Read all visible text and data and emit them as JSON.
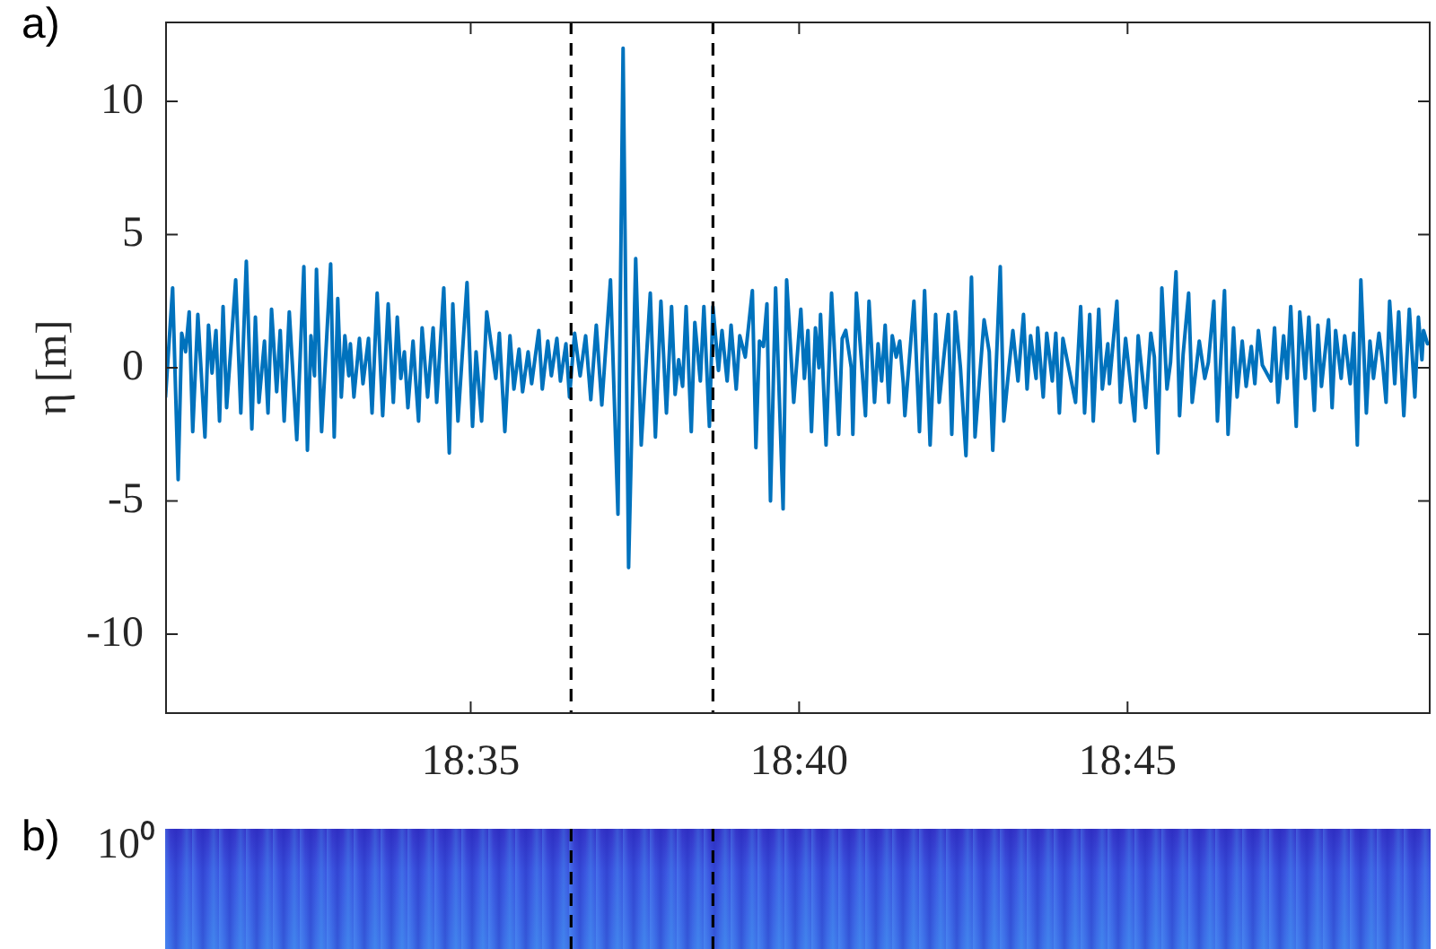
{
  "chart_data": [
    {
      "type": "line",
      "title": "a)",
      "ylabel": "η [m]",
      "color": "#0072bd",
      "xlim": [
        18.5058,
        18.8269
      ],
      "ylim": [
        -13,
        13
      ],
      "xticks": [
        {
          "value": 18.583333,
          "label": "18:35"
        },
        {
          "value": 18.666667,
          "label": "18:40"
        },
        {
          "value": 18.75,
          "label": "18:45"
        }
      ],
      "yticks": [
        -10,
        -5,
        0,
        5,
        10
      ],
      "ref_lines": [
        {
          "axis": "x",
          "value": 18.6088,
          "color": "#000000",
          "line_style": "dashed"
        },
        {
          "axis": "x",
          "value": 18.6448,
          "color": "#000000",
          "line_style": "dashed"
        }
      ],
      "x": [
        18.5059,
        18.5077,
        18.5091,
        18.51,
        18.511,
        18.5119,
        18.5128,
        18.5141,
        18.5159,
        18.5168,
        18.5177,
        18.5187,
        18.5196,
        18.5205,
        18.5214,
        18.5237,
        18.525,
        18.5264,
        18.5278,
        18.5287,
        18.5296,
        18.531,
        18.5319,
        18.5328,
        18.5341,
        18.535,
        18.536,
        18.5373,
        18.5392,
        18.541,
        18.5419,
        18.5428,
        18.5437,
        18.5442,
        18.5455,
        18.5478,
        18.5487,
        18.5496,
        18.5505,
        18.5514,
        18.5524,
        18.5528,
        18.5537,
        18.5551,
        18.556,
        18.5574,
        18.5583,
        18.5596,
        18.561,
        18.5624,
        18.5637,
        18.5647,
        18.5656,
        18.5665,
        18.5674,
        18.5687,
        18.5701,
        18.571,
        18.5724,
        18.5738,
        18.5747,
        18.5765,
        18.5779,
        18.5788,
        18.5801,
        18.5824,
        18.5838,
        18.5847,
        18.5861,
        18.5874,
        18.5897,
        18.5906,
        18.592,
        18.5933,
        18.5943,
        18.5956,
        18.5965,
        18.5979,
        18.5988,
        18.6006,
        18.6015,
        18.6029,
        18.6038,
        18.6052,
        18.6061,
        18.6075,
        18.6084,
        18.6097,
        18.6111,
        18.6125,
        18.6138,
        18.6152,
        18.6166,
        18.6188,
        18.6207,
        18.622,
        18.6234,
        18.6252,
        18.6266,
        18.6289,
        18.6302,
        18.6316,
        18.633,
        18.6343,
        18.6352,
        18.6361,
        18.6371,
        18.638,
        18.6393,
        18.6402,
        18.6416,
        18.6425,
        18.6439,
        18.6448,
        18.6462,
        18.6471,
        18.6484,
        18.6494,
        18.6507,
        18.6516,
        18.653,
        18.6548,
        18.6557,
        18.6566,
        18.6576,
        18.6585,
        18.6594,
        18.6607,
        18.6626,
        18.6635,
        18.6653,
        18.6671,
        18.668,
        18.6689,
        18.6698,
        18.6708,
        18.6717,
        18.6721,
        18.6735,
        18.6749,
        18.6767,
        18.6776,
        18.6785,
        18.6799,
        18.6803,
        18.6812,
        18.6835,
        18.6844,
        18.6858,
        18.6867,
        18.6876,
        18.6885,
        18.6894,
        18.6903,
        18.6913,
        18.6922,
        18.6931,
        18.6935,
        18.6958,
        18.6972,
        18.6985,
        18.6999,
        18.7013,
        18.7022,
        18.7045,
        18.7054,
        18.7063,
        18.7076,
        18.709,
        18.7104,
        18.7113,
        18.7136,
        18.7149,
        18.7158,
        18.7177,
        18.7186,
        18.7199,
        18.7209,
        18.7222,
        18.7236,
        18.7245,
        18.7254,
        18.7268,
        18.7272,
        18.7286,
        18.7295,
        18.7309,
        18.7318,
        18.7327,
        18.7336,
        18.7368,
        18.7381,
        18.7391,
        18.7404,
        18.7413,
        18.7427,
        18.7436,
        18.745,
        18.7454,
        18.7473,
        18.7482,
        18.7495,
        18.7518,
        18.7527,
        18.7546,
        18.7559,
        18.7568,
        18.7577,
        18.7587,
        18.76,
        18.7609,
        18.7623,
        18.7632,
        18.7641,
        18.7655,
        18.7664,
        18.7682,
        18.7696,
        18.7705,
        18.7719,
        18.7728,
        18.7746,
        18.7755,
        18.7769,
        18.7778,
        18.7791,
        18.7801,
        18.7814,
        18.7823,
        18.7832,
        18.7842,
        18.7864,
        18.7873,
        18.7882,
        18.7896,
        18.7905,
        18.7914,
        18.7928,
        18.7937,
        18.7951,
        18.796,
        18.7974,
        18.7983,
        18.7992,
        18.801,
        18.8019,
        18.8028,
        18.8042,
        18.8051,
        18.8065,
        18.8074,
        18.8083,
        18.8092,
        18.8106,
        18.8115,
        18.8124,
        18.8138,
        18.8147,
        18.8156,
        18.8165,
        18.8178,
        18.8188,
        18.8201,
        18.8215,
        18.8229,
        18.8238,
        18.8247,
        18.8251,
        18.8261
      ],
      "values": [
        -1.1,
        3.0,
        -4.2,
        1.3,
        0.6,
        2.1,
        -2.4,
        2.0,
        -2.6,
        1.6,
        -0.2,
        1.4,
        -2.0,
        2.3,
        -1.5,
        3.3,
        -1.7,
        4.0,
        -2.3,
        1.9,
        -1.3,
        1.0,
        -1.7,
        2.2,
        -0.9,
        1.4,
        -2.0,
        2.1,
        -2.7,
        3.8,
        -3.1,
        1.2,
        -0.3,
        3.7,
        -2.4,
        3.9,
        -2.6,
        2.6,
        -1.1,
        1.2,
        -0.3,
        0.9,
        -1.1,
        1.1,
        -0.6,
        1.1,
        -1.7,
        2.8,
        -1.8,
        2.4,
        -1.3,
        1.9,
        -0.4,
        0.6,
        -1.5,
        1.0,
        -2.0,
        1.5,
        -1.1,
        1.5,
        -1.3,
        3.0,
        -3.2,
        2.4,
        -2.0,
        3.2,
        -2.2,
        0.6,
        -2.0,
        2.1,
        -0.4,
        1.3,
        -2.4,
        1.2,
        -0.8,
        0.7,
        -0.9,
        0.6,
        -0.6,
        1.4,
        -0.8,
        1.0,
        -0.3,
        1.1,
        -0.5,
        0.9,
        -1.1,
        1.3,
        -0.3,
        1.2,
        -1.2,
        1.6,
        -1.4,
        3.3,
        -5.5,
        12.0,
        -7.5,
        4.1,
        -2.9,
        2.8,
        -2.6,
        2.5,
        -1.7,
        2.3,
        -1.0,
        0.3,
        -0.7,
        2.3,
        -2.4,
        1.7,
        -0.5,
        2.3,
        -2.2,
        2.3,
        -0.1,
        1.4,
        -0.5,
        1.6,
        -0.8,
        1.2,
        0.4,
        2.9,
        -3.0,
        1.0,
        0.8,
        2.4,
        -5.0,
        3.0,
        -5.3,
        3.3,
        -1.3,
        2.2,
        -0.4,
        1.4,
        -2.4,
        1.5,
        0.0,
        2.0,
        -2.9,
        2.8,
        -2.5,
        1.1,
        1.4,
        0.0,
        -2.5,
        2.8,
        -1.8,
        2.5,
        -1.3,
        0.9,
        -0.5,
        1.6,
        -1.3,
        1.2,
        0.4,
        1.0,
        -0.6,
        -1.8,
        2.5,
        -2.4,
        2.9,
        -2.9,
        2.0,
        -1.3,
        2.0,
        -2.5,
        2.1,
        0.0,
        -3.3,
        3.4,
        -2.6,
        1.8,
        0.6,
        -3.1,
        3.8,
        -2.0,
        0.0,
        1.4,
        -0.5,
        2.0,
        -0.8,
        1.2,
        -0.4,
        1.5,
        -1.1,
        1.3,
        -0.5,
        1.3,
        -1.7,
        1.1,
        -1.3,
        2.3,
        -1.7,
        2.0,
        -2.0,
        2.2,
        -0.8,
        0.9,
        -0.6,
        2.5,
        -1.3,
        1.1,
        -2.0,
        1.2,
        -1.5,
        1.3,
        0.4,
        -3.2,
        3.0,
        -0.8,
        0.2,
        3.6,
        -1.8,
        0.5,
        2.8,
        -1.3,
        1.0,
        -0.4,
        0.2,
        2.5,
        -2.0,
        2.9,
        -2.5,
        1.5,
        -1.1,
        1.0,
        -0.7,
        0.8,
        -0.6,
        1.4,
        0.1,
        -0.5,
        1.5,
        -1.3,
        1.2,
        -0.4,
        2.3,
        -2.2,
        2.1,
        -0.4,
        1.9,
        -1.6,
        1.6,
        -0.7,
        1.8,
        -1.5,
        1.4,
        -0.4,
        1.2,
        -0.6,
        1.3,
        -2.9,
        3.3,
        -1.7,
        1.0,
        -0.4,
        1.3,
        0.2,
        -1.3,
        2.5,
        -0.6,
        2.1,
        -1.8,
        2.2,
        -1.1,
        1.9,
        0.3,
        1.4,
        0.9
      ]
    },
    {
      "type": "other",
      "title": "b)",
      "annotations": [
        "10⁰"
      ]
    }
  ]
}
